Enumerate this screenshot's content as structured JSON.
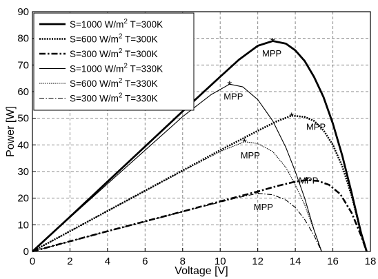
{
  "chart_data": {
    "type": "line",
    "xlabel": "Voltage [V]",
    "ylabel": "Power [W]",
    "xlim": [
      0,
      18
    ],
    "ylim": [
      0,
      90
    ],
    "xticks": [
      "0",
      "2",
      "4",
      "6",
      "8",
      "10",
      "12",
      "14",
      "16",
      "18"
    ],
    "yticks": [
      "0",
      "10",
      "20",
      "30",
      "40",
      "50",
      "60",
      "70",
      "80",
      "90"
    ],
    "grid": true,
    "legend_position": "top-left",
    "series": [
      {
        "name": "S=1000 W/m² T=300K",
        "legend_main": "S=1000 W/m",
        "legend_sup": "2",
        "legend_rest": " T=300K",
        "style": "solid-thick",
        "x": [
          0,
          2,
          4,
          6,
          8,
          10,
          11,
          12,
          12.8,
          13.5,
          14,
          14.5,
          15,
          15.5,
          16,
          16.5,
          17,
          17.5,
          17.8
        ],
        "y": [
          0,
          13,
          26.2,
          39.4,
          52.6,
          65.6,
          72,
          77.2,
          79,
          78,
          75.5,
          71.5,
          65.5,
          58,
          48,
          36,
          22,
          7,
          0
        ]
      },
      {
        "name": "S=600 W/m² T=300K",
        "legend_main": "S=600 W/m",
        "legend_sup": "2",
        "legend_rest": " T=300K",
        "style": "dotted-thick",
        "x": [
          0,
          2,
          4,
          6,
          8,
          10,
          12,
          13,
          13.8,
          14.5,
          15,
          15.5,
          16,
          16.5,
          17,
          17.5,
          17.8
        ],
        "y": [
          0,
          7.6,
          15.2,
          22.8,
          30.4,
          38,
          45.3,
          48.8,
          51,
          50.5,
          49,
          45.5,
          40,
          32,
          21,
          7,
          0
        ]
      },
      {
        "name": "S=300 W/m² T=300K",
        "legend_main": "S=300 W/m",
        "legend_sup": "2",
        "legend_rest": " T=300K",
        "style": "dashdot-thick",
        "x": [
          0,
          2,
          4,
          6,
          8,
          10,
          12,
          13,
          14,
          14.6,
          15.2,
          15.8,
          16.4,
          17,
          17.5,
          17.8
        ],
        "y": [
          0,
          3.8,
          7.6,
          11.3,
          15,
          18.8,
          22.5,
          24.5,
          26.2,
          26.8,
          26.5,
          25,
          21.5,
          14.5,
          6,
          0
        ]
      },
      {
        "name": "S=1000 W/m² T=330K",
        "legend_main": "S=1000 W/m",
        "legend_sup": "2",
        "legend_rest": " T=330K",
        "style": "solid-thin",
        "x": [
          0,
          2,
          4,
          6,
          8,
          9.5,
          10.5,
          11.2,
          12,
          12.8,
          13.5,
          14,
          14.5,
          15,
          15.4
        ],
        "y": [
          0,
          12.7,
          25.4,
          38,
          50.6,
          58.8,
          62.8,
          61.8,
          57,
          49,
          39,
          30,
          20,
          8,
          0
        ]
      },
      {
        "name": "S=600 W/m² T=330K",
        "legend_main": "S=600 W/m",
        "legend_sup": "2",
        "legend_rest": " T=330K",
        "style": "dotted-thin",
        "x": [
          0,
          2,
          4,
          6,
          8,
          10,
          11.3,
          12,
          12.8,
          13.5,
          14,
          14.5,
          15,
          15.4
        ],
        "y": [
          0,
          7.6,
          15.2,
          22.7,
          30.2,
          37.5,
          41.2,
          40.5,
          37.5,
          31.5,
          25,
          17.5,
          8,
          0
        ]
      },
      {
        "name": "S=300 W/m² T=330K",
        "legend_main": "S=300 W/m",
        "legend_sup": "2",
        "legend_rest": " T=330K",
        "style": "dashdot-thin",
        "x": [
          0,
          2,
          4,
          6,
          8,
          10,
          11,
          12,
          12.8,
          13.5,
          14,
          14.5,
          15,
          15.4
        ],
        "y": [
          0,
          3.8,
          7.5,
          11.2,
          14.9,
          18.5,
          20.3,
          21.8,
          21.3,
          19.3,
          16.5,
          12,
          6,
          0
        ]
      }
    ],
    "mpp_points": [
      {
        "x": 12.8,
        "y": 79,
        "label": "MPP",
        "label_dx": -0.05,
        "label_dy": -4.5
      },
      {
        "x": 10.5,
        "y": 62.8,
        "label": "MPP",
        "label_dx": 0.2,
        "label_dy": -4.5
      },
      {
        "x": 13.8,
        "y": 51,
        "label": "MPP",
        "label_dx": 1.3,
        "label_dy": -4
      },
      {
        "x": 11.3,
        "y": 41.2,
        "label": "MPP",
        "label_dx": 0.3,
        "label_dy": -5
      },
      {
        "x": 14.6,
        "y": 26.8,
        "label": "MPP",
        "label_dx": 0.1,
        "label_dy": 0
      },
      {
        "x": 12,
        "y": 21.8,
        "label": "MPP",
        "label_dx": 0.3,
        "label_dy": -5
      }
    ],
    "mpp_marker": "*"
  }
}
